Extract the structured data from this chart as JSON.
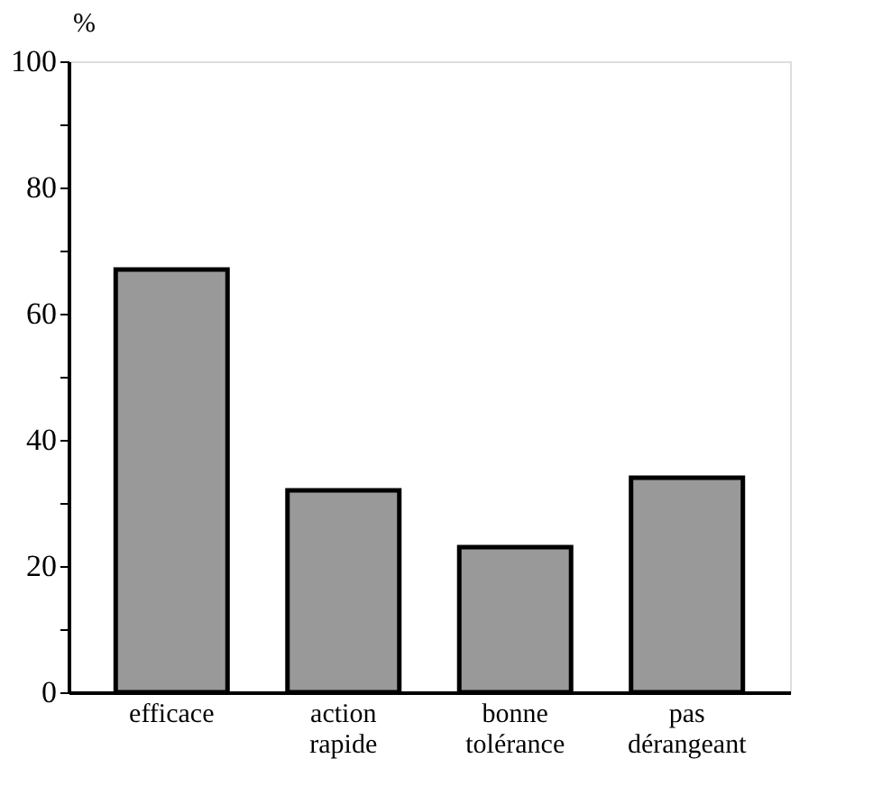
{
  "chart_data": {
    "type": "bar",
    "ylabel": "%",
    "categories": [
      "efficace",
      "action rapide",
      "bonne tolérance",
      "pas dérangeant"
    ],
    "values": [
      67,
      32,
      23,
      34
    ],
    "color": "#999999",
    "ylim": [
      0,
      100
    ],
    "yticks": [
      0,
      {
        "value": 10,
        "label": null
      },
      20,
      {
        "value": 30,
        "label": null
      },
      40,
      {
        "value": 50,
        "label": null
      },
      60,
      {
        "value": 70,
        "label": null
      },
      80,
      {
        "value": 90,
        "label": null
      },
      100
    ],
    "grid": false
  }
}
